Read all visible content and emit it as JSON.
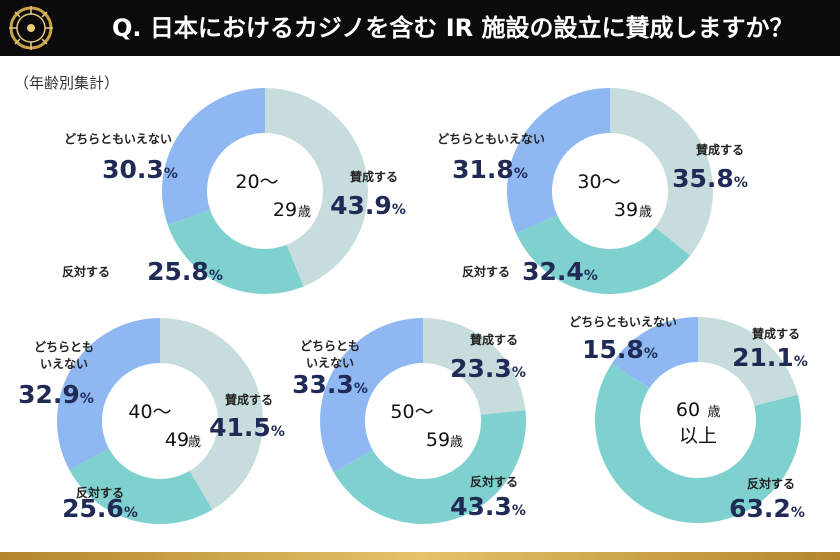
{
  "header": {
    "title": "Q. 日本におけるカジノを含む IR 施設の設立に賛成しますか？"
  },
  "subtitle": "（年齢別集計）",
  "colors": {
    "agree": "#c7dcdc",
    "oppose": "#7fd1cf",
    "neither": "#8fb8f2",
    "value_text": "#1f2a55"
  },
  "chart_data": [
    {
      "type": "pie",
      "center_lines": [
        "20〜",
        "29",
        "歳"
      ],
      "categories": [
        "賛成する",
        "反対する",
        "どちらともいえない"
      ],
      "values": [
        43.9,
        25.8,
        30.3
      ],
      "value_labels": [
        "43.9",
        "25.8",
        "30.3"
      ],
      "unit": "%"
    },
    {
      "type": "pie",
      "center_lines": [
        "30〜",
        "39",
        "歳"
      ],
      "categories": [
        "賛成する",
        "反対する",
        "どちらともいえない"
      ],
      "values": [
        35.8,
        32.4,
        31.8
      ],
      "value_labels": [
        "35.8",
        "32.4",
        "31.8"
      ],
      "unit": "%"
    },
    {
      "type": "pie",
      "center_lines": [
        "40〜",
        "49",
        "歳"
      ],
      "categories": [
        "賛成する",
        "反対する",
        "どちらとも|いえない"
      ],
      "values": [
        41.5,
        25.6,
        32.9
      ],
      "value_labels": [
        "41.5",
        "25.6",
        "32.9"
      ],
      "unit": "%"
    },
    {
      "type": "pie",
      "center_lines": [
        "50〜",
        "59",
        "歳"
      ],
      "categories": [
        "賛成する",
        "反対する",
        "どちらとも|いえない"
      ],
      "values": [
        23.3,
        43.3,
        33.3
      ],
      "value_labels": [
        "23.3",
        "43.3",
        "33.3"
      ],
      "unit": "%"
    },
    {
      "type": "pie",
      "center_lines": [
        "60",
        "歳",
        "以上"
      ],
      "categories": [
        "賛成する",
        "反対する",
        "どちらともいえない"
      ],
      "values": [
        21.1,
        63.2,
        15.8
      ],
      "value_labels": [
        "21.1",
        "63.2",
        "15.8"
      ],
      "unit": "%"
    }
  ]
}
